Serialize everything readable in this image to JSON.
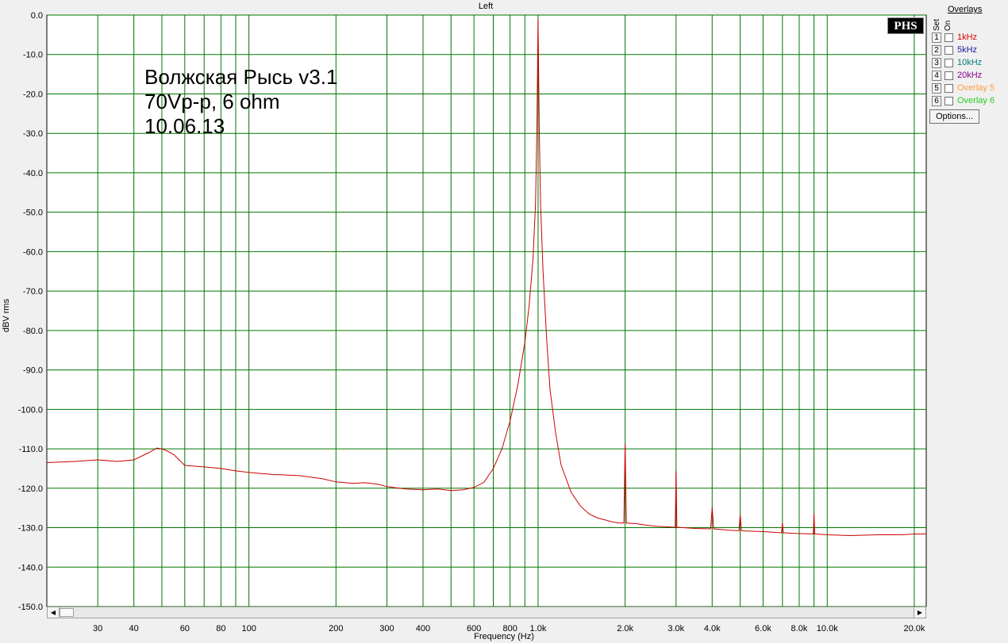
{
  "window": {
    "title": "Left"
  },
  "chart_data": {
    "type": "line",
    "title": "Left",
    "xlabel": "Frequency (Hz)",
    "ylabel": "dBV rms",
    "x_scale": "log",
    "xlim": [
      20,
      22000
    ],
    "ylim": [
      -150,
      0
    ],
    "grid": true,
    "x_ticks": [
      30,
      40,
      60,
      80,
      100,
      200,
      300,
      400,
      600,
      800,
      1000,
      2000,
      3000,
      4000,
      6000,
      8000,
      10000,
      20000
    ],
    "x_tick_labels": [
      "30",
      "40",
      "60",
      "80",
      "100",
      "200",
      "300",
      "400",
      "600",
      "800",
      "1.0k",
      "2.0k",
      "3.0k",
      "4.0k",
      "6.0k",
      "8.0k",
      "10.0k",
      "20.0k"
    ],
    "x_minor_grid": [
      50,
      70,
      90,
      500,
      700,
      900,
      5000,
      7000,
      9000
    ],
    "y_ticks": [
      0,
      -10,
      -20,
      -30,
      -40,
      -50,
      -60,
      -70,
      -80,
      -90,
      -100,
      -110,
      -120,
      -130,
      -140,
      -150
    ],
    "y_tick_labels": [
      "0.0",
      "-10.0",
      "-20.0",
      "-30.0",
      "-40.0",
      "-50.0",
      "-60.0",
      "-70.0",
      "-80.0",
      "-90.0",
      "-100.0",
      "-110.0",
      "-120.0",
      "-130.0",
      "-140.0",
      "-150.0"
    ],
    "series": [
      {
        "color": "#cc0000",
        "x": [
          20,
          25,
          30,
          35,
          40,
          45,
          48,
          50,
          52,
          55,
          60,
          70,
          80,
          90,
          100,
          120,
          150,
          180,
          200,
          230,
          250,
          280,
          300,
          350,
          400,
          450,
          500,
          550,
          600,
          650,
          700,
          750,
          800,
          850,
          900,
          930,
          960,
          980,
          990,
          1000,
          1010,
          1020,
          1040,
          1070,
          1100,
          1150,
          1200,
          1300,
          1400,
          1500,
          1600,
          1700,
          1800,
          1900,
          1980,
          2000,
          2020,
          2200,
          2500,
          2800,
          2980,
          3000,
          3020,
          3500,
          3950,
          4000,
          4050,
          4500,
          4950,
          5000,
          5050,
          6000,
          6950,
          7000,
          7050,
          8000,
          8950,
          9000,
          9050,
          10000,
          12000,
          15000,
          18000,
          20000,
          22000
        ],
        "y": [
          -113.5,
          -113.2,
          -112.8,
          -113.2,
          -112.8,
          -111.0,
          -109.8,
          -110.0,
          -110.5,
          -111.5,
          -114.2,
          -114.6,
          -115.0,
          -115.6,
          -116.0,
          -116.5,
          -116.8,
          -117.6,
          -118.4,
          -118.8,
          -118.6,
          -119.0,
          -119.6,
          -120.2,
          -120.4,
          -120.2,
          -120.6,
          -120.4,
          -119.8,
          -118.5,
          -115.0,
          -110.0,
          -103.0,
          -94.0,
          -83.0,
          -74.0,
          -62.0,
          -48.0,
          -30.0,
          -1.0,
          -30.0,
          -48.0,
          -65.0,
          -82.0,
          -95.0,
          -106.0,
          -114.0,
          -121.0,
          -124.5,
          -126.5,
          -127.5,
          -128.0,
          -128.5,
          -128.8,
          -128.8,
          -108.8,
          -128.8,
          -129.0,
          -129.6,
          -129.8,
          -129.9,
          -115.7,
          -129.9,
          -130.2,
          -130.3,
          -124.9,
          -130.3,
          -130.6,
          -130.8,
          -126.7,
          -130.8,
          -131.0,
          -131.3,
          -128.8,
          -131.3,
          -131.5,
          -131.6,
          -126.4,
          -131.6,
          -131.8,
          -132.0,
          -131.8,
          -131.8,
          -131.6,
          -131.6
        ]
      }
    ],
    "annotations": [
      "Волжская Рысь v3.1",
      "70Vp-p, 6 ohm",
      "10.06.13"
    ]
  },
  "logo": {
    "text": "PHS"
  },
  "overlays": {
    "title": "Overlays",
    "set_header": "Set",
    "on_header": "On",
    "items": [
      {
        "num": "1",
        "label": "1kHz",
        "color": "#dd0000"
      },
      {
        "num": "2",
        "label": "5kHz",
        "color": "#1a1a9a"
      },
      {
        "num": "3",
        "label": "10kHz",
        "color": "#008080"
      },
      {
        "num": "4",
        "label": "20kHz",
        "color": "#8a008a"
      },
      {
        "num": "5",
        "label": "Overlay 5",
        "color": "#ff9a40"
      },
      {
        "num": "6",
        "label": "Overlay 6",
        "color": "#22cc22"
      }
    ],
    "options_label": "Options..."
  },
  "scrollbar": {
    "left_arrow": "◀",
    "right_arrow": "▶"
  },
  "colors": {
    "plot_background": "#ffffff",
    "grid": "#007700",
    "trace": "#cc0000"
  }
}
